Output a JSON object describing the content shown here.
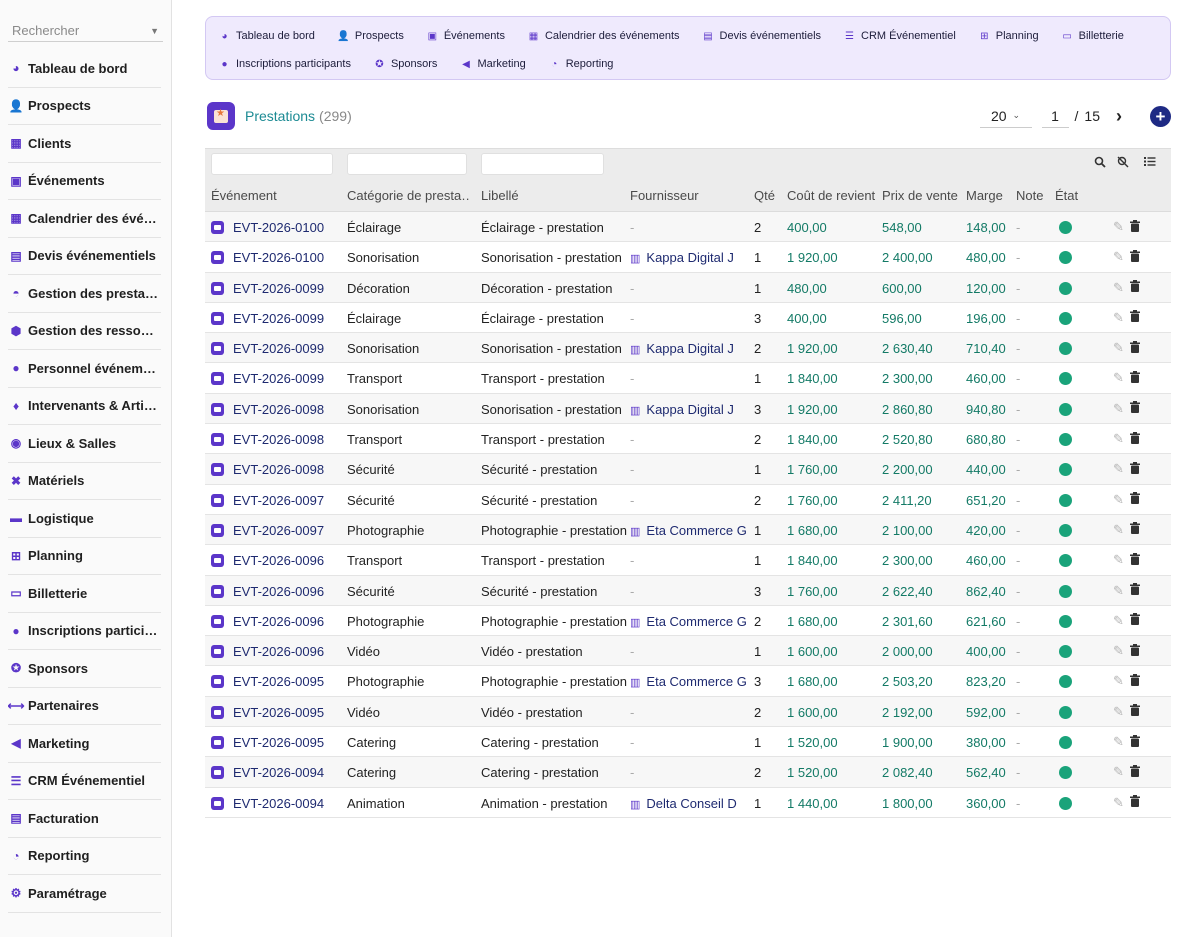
{
  "sidebar": {
    "search_placeholder": "Rechercher",
    "items": [
      {
        "label": "Tableau de bord",
        "icon": "dashboard-icon"
      },
      {
        "label": "Prospects",
        "icon": "user-plus-icon"
      },
      {
        "label": "Clients",
        "icon": "building-icon"
      },
      {
        "label": "Événements",
        "icon": "calendar-check-icon"
      },
      {
        "label": "Calendrier des événements",
        "icon": "calendar-icon"
      },
      {
        "label": "Devis événementiels",
        "icon": "file-icon"
      },
      {
        "label": "Gestion des prestations",
        "icon": "service-bell-icon"
      },
      {
        "label": "Gestion des ressources",
        "icon": "cubes-icon"
      },
      {
        "label": "Personnel événementiel",
        "icon": "person-icon"
      },
      {
        "label": "Intervenants & Artistes",
        "icon": "microphone-icon"
      },
      {
        "label": "Lieux & Salles",
        "icon": "map-pin-icon"
      },
      {
        "label": "Matériels",
        "icon": "tools-icon"
      },
      {
        "label": "Logistique",
        "icon": "truck-icon"
      },
      {
        "label": "Planning",
        "icon": "sitemap-icon"
      },
      {
        "label": "Billetterie",
        "icon": "ticket-icon"
      },
      {
        "label": "Inscriptions participants",
        "icon": "user-check-icon"
      },
      {
        "label": "Sponsors",
        "icon": "award-icon"
      },
      {
        "label": "Partenaires",
        "icon": "handshake-icon"
      },
      {
        "label": "Marketing",
        "icon": "megaphone-icon"
      },
      {
        "label": "CRM Événementiel",
        "icon": "list-icon"
      },
      {
        "label": "Facturation",
        "icon": "invoice-icon"
      },
      {
        "label": "Reporting",
        "icon": "pie-chart-icon"
      },
      {
        "label": "Paramétrage",
        "icon": "gear-icon"
      }
    ]
  },
  "topmenu": {
    "items": [
      {
        "label": "Tableau de bord",
        "icon": "dashboard-icon"
      },
      {
        "label": "Prospects",
        "icon": "user-plus-icon"
      },
      {
        "label": "Événements",
        "icon": "calendar-check-icon"
      },
      {
        "label": "Calendrier des événements",
        "icon": "calendar-icon"
      },
      {
        "label": "Devis événementiels",
        "icon": "file-icon"
      },
      {
        "label": "CRM Événementiel",
        "icon": "list-icon"
      },
      {
        "label": "Planning",
        "icon": "sitemap-icon"
      },
      {
        "label": "Billetterie",
        "icon": "ticket-icon"
      },
      {
        "label": "Inscriptions participants",
        "icon": "user-check-icon"
      },
      {
        "label": "Sponsors",
        "icon": "award-icon"
      },
      {
        "label": "Marketing",
        "icon": "megaphone-icon"
      },
      {
        "label": "Reporting",
        "icon": "pie-chart-icon"
      }
    ]
  },
  "header": {
    "title": "Prestations",
    "count": "(299)",
    "per_page": "20",
    "page": "1",
    "page_sep": "/",
    "total_pages": "15",
    "next": "›",
    "add": "+"
  },
  "table": {
    "columns": [
      "Événement",
      "Catégorie de presta…",
      "Libellé",
      "Fournisseur",
      "Qté",
      "Coût de revient",
      "Prix de vente",
      "Marge",
      "Note",
      "État"
    ],
    "rows": [
      {
        "ev": "EVT-2026-0100",
        "cat": "Éclairage",
        "lib": "Éclairage - prestation",
        "four": "-",
        "qte": "2",
        "cout": "400,00",
        "prix": "548,00",
        "marge": "148,00",
        "note": "-"
      },
      {
        "ev": "EVT-2026-0100",
        "cat": "Sonorisation",
        "lib": "Sonorisation - prestation",
        "four": "Kappa Digital J",
        "qte": "1",
        "cout": "1 920,00",
        "prix": "2 400,00",
        "marge": "480,00",
        "note": "-"
      },
      {
        "ev": "EVT-2026-0099",
        "cat": "Décoration",
        "lib": "Décoration - prestation",
        "four": "-",
        "qte": "1",
        "cout": "480,00",
        "prix": "600,00",
        "marge": "120,00",
        "note": "-"
      },
      {
        "ev": "EVT-2026-0099",
        "cat": "Éclairage",
        "lib": "Éclairage - prestation",
        "four": "-",
        "qte": "3",
        "cout": "400,00",
        "prix": "596,00",
        "marge": "196,00",
        "note": "-"
      },
      {
        "ev": "EVT-2026-0099",
        "cat": "Sonorisation",
        "lib": "Sonorisation - prestation",
        "four": "Kappa Digital J",
        "qte": "2",
        "cout": "1 920,00",
        "prix": "2 630,40",
        "marge": "710,40",
        "note": "-"
      },
      {
        "ev": "EVT-2026-0099",
        "cat": "Transport",
        "lib": "Transport - prestation",
        "four": "-",
        "qte": "1",
        "cout": "1 840,00",
        "prix": "2 300,00",
        "marge": "460,00",
        "note": "-"
      },
      {
        "ev": "EVT-2026-0098",
        "cat": "Sonorisation",
        "lib": "Sonorisation - prestation",
        "four": "Kappa Digital J",
        "qte": "3",
        "cout": "1 920,00",
        "prix": "2 860,80",
        "marge": "940,80",
        "note": "-"
      },
      {
        "ev": "EVT-2026-0098",
        "cat": "Transport",
        "lib": "Transport - prestation",
        "four": "-",
        "qte": "2",
        "cout": "1 840,00",
        "prix": "2 520,80",
        "marge": "680,80",
        "note": "-"
      },
      {
        "ev": "EVT-2026-0098",
        "cat": "Sécurité",
        "lib": "Sécurité - prestation",
        "four": "-",
        "qte": "1",
        "cout": "1 760,00",
        "prix": "2 200,00",
        "marge": "440,00",
        "note": "-"
      },
      {
        "ev": "EVT-2026-0097",
        "cat": "Sécurité",
        "lib": "Sécurité - prestation",
        "four": "-",
        "qte": "2",
        "cout": "1 760,00",
        "prix": "2 411,20",
        "marge": "651,20",
        "note": "-"
      },
      {
        "ev": "EVT-2026-0097",
        "cat": "Photographie",
        "lib": "Photographie - prestation",
        "four": "Eta Commerce G",
        "qte": "1",
        "cout": "1 680,00",
        "prix": "2 100,00",
        "marge": "420,00",
        "note": "-"
      },
      {
        "ev": "EVT-2026-0096",
        "cat": "Transport",
        "lib": "Transport - prestation",
        "four": "-",
        "qte": "1",
        "cout": "1 840,00",
        "prix": "2 300,00",
        "marge": "460,00",
        "note": "-"
      },
      {
        "ev": "EVT-2026-0096",
        "cat": "Sécurité",
        "lib": "Sécurité - prestation",
        "four": "-",
        "qte": "3",
        "cout": "1 760,00",
        "prix": "2 622,40",
        "marge": "862,40",
        "note": "-"
      },
      {
        "ev": "EVT-2026-0096",
        "cat": "Photographie",
        "lib": "Photographie - prestation",
        "four": "Eta Commerce G",
        "qte": "2",
        "cout": "1 680,00",
        "prix": "2 301,60",
        "marge": "621,60",
        "note": "-"
      },
      {
        "ev": "EVT-2026-0096",
        "cat": "Vidéo",
        "lib": "Vidéo - prestation",
        "four": "-",
        "qte": "1",
        "cout": "1 600,00",
        "prix": "2 000,00",
        "marge": "400,00",
        "note": "-"
      },
      {
        "ev": "EVT-2026-0095",
        "cat": "Photographie",
        "lib": "Photographie - prestation",
        "four": "Eta Commerce G",
        "qte": "3",
        "cout": "1 680,00",
        "prix": "2 503,20",
        "marge": "823,20",
        "note": "-"
      },
      {
        "ev": "EVT-2026-0095",
        "cat": "Vidéo",
        "lib": "Vidéo - prestation",
        "four": "-",
        "qte": "2",
        "cout": "1 600,00",
        "prix": "2 192,00",
        "marge": "592,00",
        "note": "-"
      },
      {
        "ev": "EVT-2026-0095",
        "cat": "Catering",
        "lib": "Catering - prestation",
        "four": "-",
        "qte": "1",
        "cout": "1 520,00",
        "prix": "1 900,00",
        "marge": "380,00",
        "note": "-"
      },
      {
        "ev": "EVT-2026-0094",
        "cat": "Catering",
        "lib": "Catering - prestation",
        "four": "-",
        "qte": "2",
        "cout": "1 520,00",
        "prix": "2 082,40",
        "marge": "562,40",
        "note": "-"
      },
      {
        "ev": "EVT-2026-0094",
        "cat": "Animation",
        "lib": "Animation - prestation",
        "four": "Delta Conseil D",
        "qte": "1",
        "cout": "1 440,00",
        "prix": "1 800,00",
        "marge": "360,00",
        "note": "-"
      }
    ]
  },
  "colors": {
    "accent": "#5b36c9",
    "title": "#1b8a93",
    "money": "#137a66",
    "status_ok": "#1aa37a",
    "link": "#1e2a70"
  }
}
